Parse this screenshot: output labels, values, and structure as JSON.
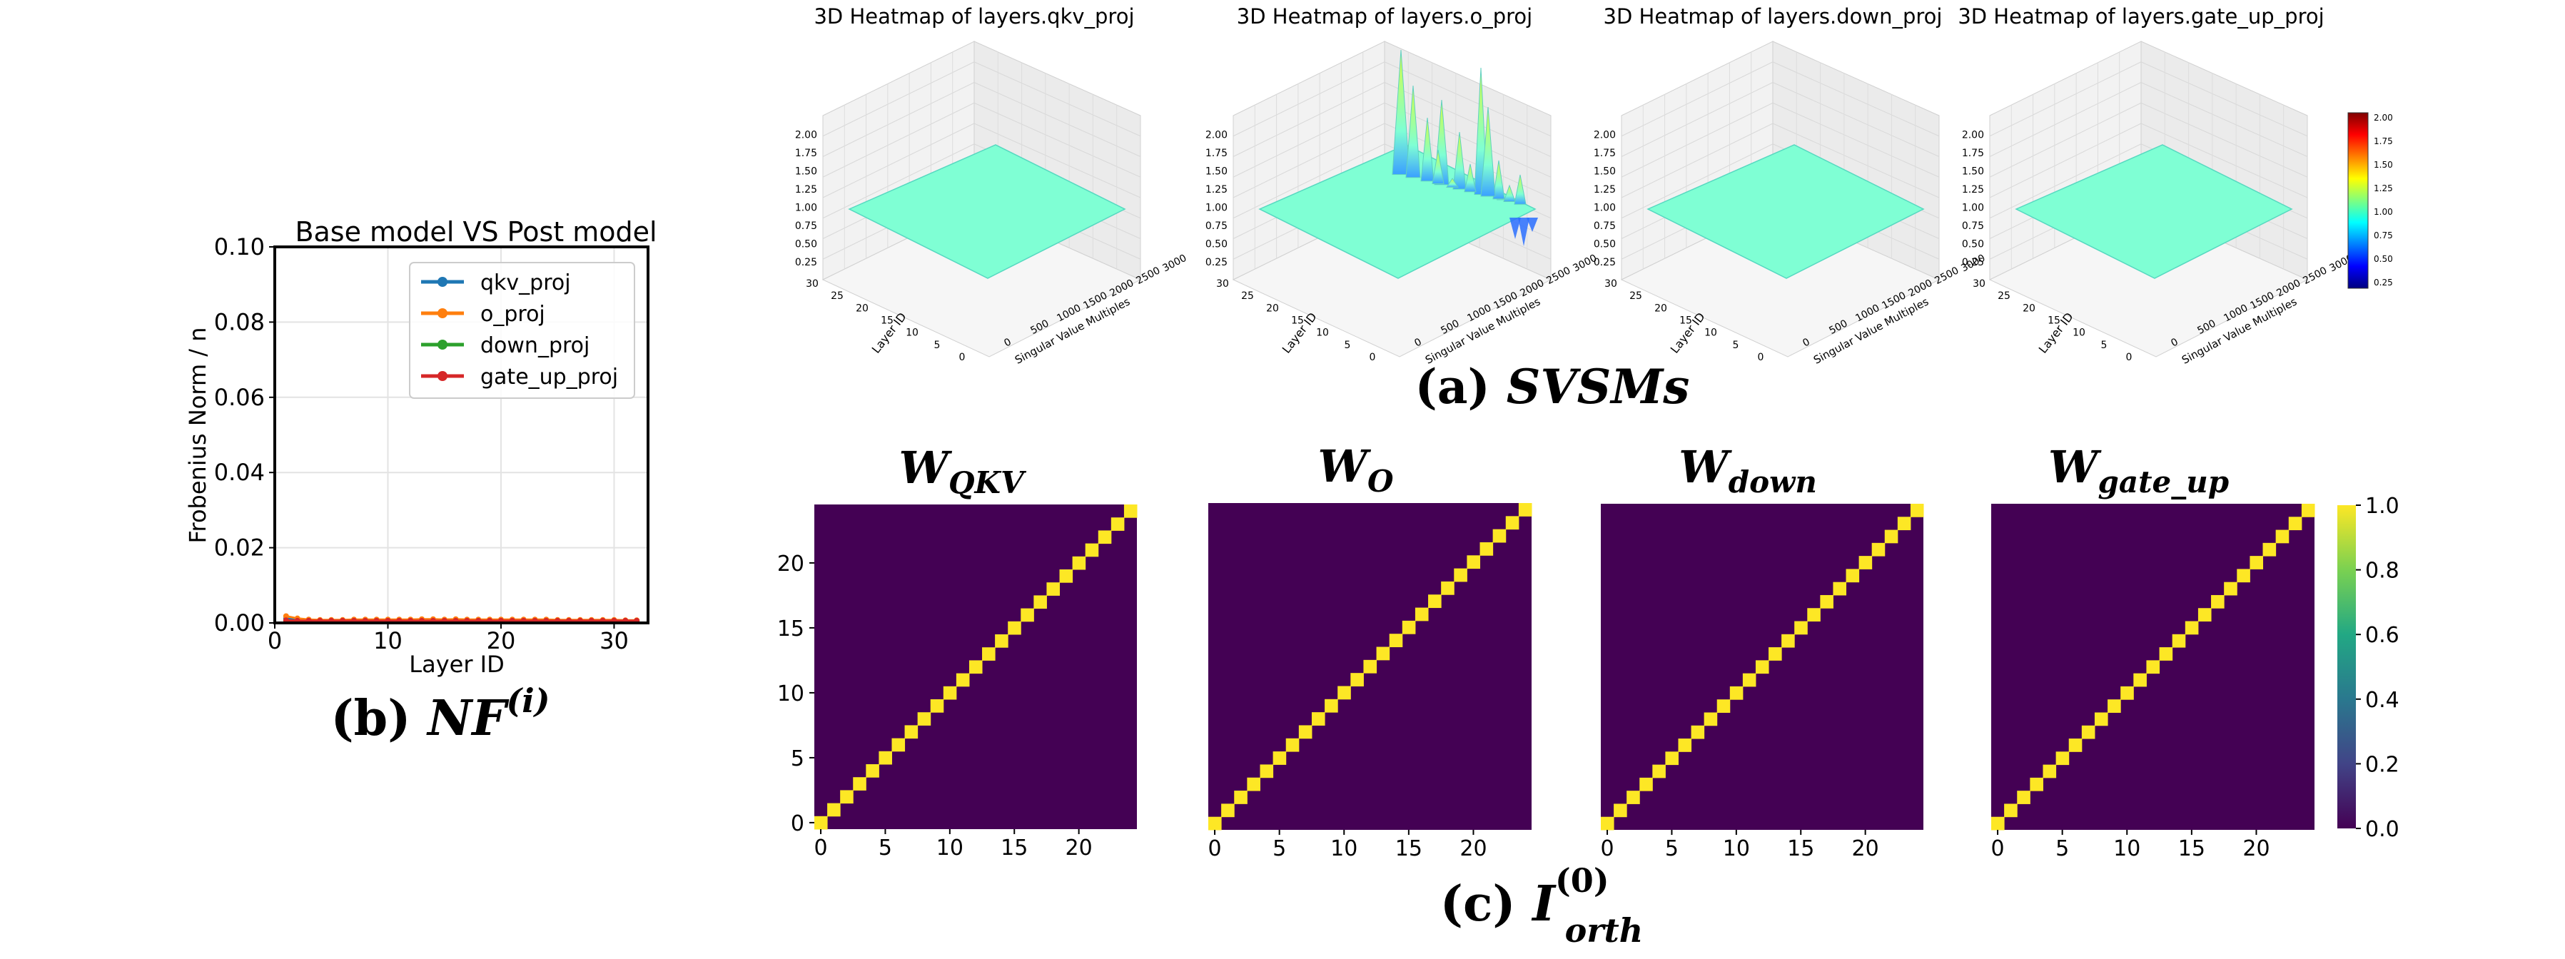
{
  "panel_captions": {
    "a_prefix": "(a) ",
    "a_italic": "SVSMs",
    "b_prefix": "(b) ",
    "b_italic": "NF",
    "b_sup": "(i)",
    "c_prefix": "(c) ",
    "c_italic": "I",
    "c_sup": "(0)",
    "c_sub": "orth"
  },
  "colors": {
    "surface": "#7fffd4",
    "surface_edge": "#56d8c0",
    "heat_bg": "#440154",
    "heat_diag": "#fde725",
    "qkv": "#1f77b4",
    "o": "#ff7f0e",
    "down": "#2ca02c",
    "gate_up": "#d62728"
  },
  "chart_data": [
    {
      "id": "svsm",
      "type": "surface3d",
      "panels": [
        {
          "title": "3D Heatmap of layers.qkv_proj",
          "flat_value": 1.0,
          "spiky": false
        },
        {
          "title": "3D Heatmap of layers.o_proj",
          "flat_value": 1.0,
          "spiky": true
        },
        {
          "title": "3D Heatmap of layers.down_proj",
          "flat_value": 1.0,
          "spiky": false
        },
        {
          "title": "3D Heatmap of layers.gate_up_proj",
          "flat_value": 1.0,
          "spiky": false
        }
      ],
      "z_ticks": [
        "0.25",
        "0.50",
        "0.75",
        "1.00",
        "1.25",
        "1.50",
        "1.75",
        "2.00"
      ],
      "layer_ticks": [
        "0",
        "5",
        "10",
        "15",
        "20",
        "25",
        "30"
      ],
      "sv_ticks": [
        "0",
        "500",
        "1000",
        "1500",
        "2000",
        "2500",
        "3000"
      ],
      "xlabel": "Singular Value Multiples",
      "ylabel": "Layer ID",
      "colorbar_ticks": [
        "0.25",
        "0.50",
        "0.75",
        "1.00",
        "1.25",
        "1.50",
        "1.75",
        "2.00"
      ]
    },
    {
      "id": "nf",
      "type": "line",
      "title": "Base model VS Post model",
      "xlabel": "Layer ID",
      "ylabel": "Frobenius Norm / n",
      "xlim": [
        0,
        33
      ],
      "ylim": [
        0,
        0.1
      ],
      "x_ticks": [
        "0",
        "10",
        "20",
        "30"
      ],
      "y_ticks": [
        "0.00",
        "0.02",
        "0.04",
        "0.06",
        "0.08",
        "0.10"
      ],
      "x": [
        1,
        2,
        3,
        4,
        5,
        6,
        7,
        8,
        9,
        10,
        11,
        12,
        13,
        14,
        15,
        16,
        17,
        18,
        19,
        20,
        21,
        22,
        23,
        24,
        25,
        26,
        27,
        28,
        29,
        30,
        31,
        32
      ],
      "series": [
        {
          "name": "qkv_proj",
          "values": [
            0.0012,
            0.0008,
            0.0006,
            0.0005,
            0.0005,
            0.0005,
            0.0005,
            0.0005,
            0.0005,
            0.0005,
            0.0005,
            0.0005,
            0.0005,
            0.0005,
            0.0005,
            0.0005,
            0.0005,
            0.0005,
            0.0005,
            0.0005,
            0.0005,
            0.0005,
            0.0005,
            0.0005,
            0.0005,
            0.0005,
            0.0005,
            0.0005,
            0.0005,
            0.0005,
            0.0005,
            0.0005
          ]
        },
        {
          "name": "o_proj",
          "values": [
            0.0018,
            0.0012,
            0.0009,
            0.0008,
            0.0008,
            0.0008,
            0.0009,
            0.0009,
            0.0009,
            0.0009,
            0.0009,
            0.0009,
            0.001,
            0.001,
            0.0009,
            0.001,
            0.0009,
            0.0009,
            0.0009,
            0.0009,
            0.0009,
            0.0009,
            0.0009,
            0.0009,
            0.0008,
            0.0008,
            0.0008,
            0.0008,
            0.0008,
            0.0008,
            0.0007,
            0.0007
          ]
        },
        {
          "name": "down_proj",
          "values": [
            0.0006,
            0.0005,
            0.0005,
            0.0005,
            0.0005,
            0.0005,
            0.0005,
            0.0005,
            0.0005,
            0.0005,
            0.0005,
            0.0005,
            0.0005,
            0.0005,
            0.0005,
            0.0005,
            0.0005,
            0.0005,
            0.0005,
            0.0005,
            0.0005,
            0.0005,
            0.0005,
            0.0005,
            0.0005,
            0.0005,
            0.0005,
            0.0005,
            0.0005,
            0.0005,
            0.0005,
            0.0005
          ]
        },
        {
          "name": "gate_up_proj",
          "values": [
            0.0007,
            0.0006,
            0.0006,
            0.0006,
            0.0006,
            0.0006,
            0.0006,
            0.0006,
            0.0006,
            0.0006,
            0.0006,
            0.0006,
            0.0006,
            0.0006,
            0.0006,
            0.0006,
            0.0006,
            0.0006,
            0.0006,
            0.0006,
            0.0006,
            0.0006,
            0.0006,
            0.0006,
            0.0006,
            0.0006,
            0.0006,
            0.0006,
            0.0006,
            0.0006,
            0.0006,
            0.0006
          ]
        }
      ],
      "legend_loc": "upper right",
      "grid": true
    },
    {
      "id": "orth",
      "type": "heatmap",
      "size": 25,
      "matrix": "identity",
      "panels": [
        {
          "title_main": "W",
          "title_sub": "QKV"
        },
        {
          "title_main": "W",
          "title_sub": "O"
        },
        {
          "title_main": "W",
          "title_sub": "down"
        },
        {
          "title_main": "W",
          "title_sub": "gate_up"
        }
      ],
      "x_ticks": [
        "0",
        "5",
        "10",
        "15",
        "20"
      ],
      "y_ticks": [
        "0",
        "5",
        "10",
        "15",
        "20"
      ],
      "colorbar_ticks": [
        "0.0",
        "0.2",
        "0.4",
        "0.6",
        "0.8",
        "1.0"
      ],
      "vmin": 0,
      "vmax": 1
    }
  ]
}
